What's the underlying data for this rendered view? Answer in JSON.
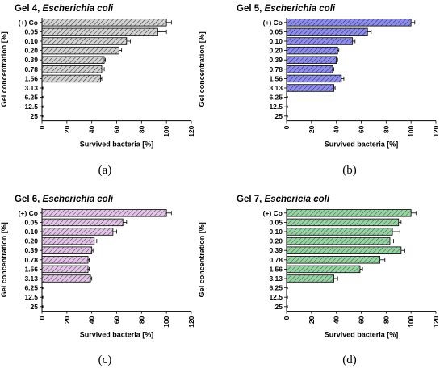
{
  "chart_data": [
    {
      "type": "bar",
      "orientation": "horizontal",
      "title_main": "Gel 4, ",
      "title_species": "Escherichia coli",
      "caption": "(a)",
      "xlabel": "Survived bacteria [%]",
      "ylabel": "Gel concentration [%]",
      "xlim": [
        0,
        120
      ],
      "xticks": [
        "0",
        "20",
        "40",
        "60",
        "80",
        "100",
        "120"
      ],
      "categories": [
        "(+) Co",
        "0.05",
        "0.10",
        "0.20",
        "0.39",
        "0.78",
        "1.56",
        "3.13",
        "6.25",
        "12.5",
        "25"
      ],
      "values": [
        100,
        93,
        68,
        62,
        50,
        48,
        47,
        0,
        0,
        0,
        0
      ],
      "errors": [
        4,
        7,
        3,
        2,
        1,
        2,
        1,
        0,
        0,
        0,
        0
      ],
      "bar_color": "#d4d4d4",
      "hatch_color": "#333333"
    },
    {
      "type": "bar",
      "orientation": "horizontal",
      "title_main": "Gel 5, ",
      "title_species": "Escherichia coli",
      "caption": "(b)",
      "xlabel": "Survived bacteria [%]",
      "ylabel": "Gel concentration [%]",
      "xlim": [
        0,
        120
      ],
      "xticks": [
        "0",
        "20",
        "40",
        "60",
        "80",
        "100",
        "120"
      ],
      "categories": [
        "(+) Co",
        "0.05",
        "0.10",
        "0.20",
        "0.39",
        "0.78",
        "1.56",
        "3.13",
        "6.25",
        "12.5",
        "25"
      ],
      "values": [
        100,
        65,
        53,
        41,
        40,
        37,
        44,
        38,
        0,
        0,
        0
      ],
      "errors": [
        3,
        3,
        2,
        1,
        1,
        1,
        2,
        1,
        0,
        0,
        0
      ],
      "bar_color": "#8f8fe8",
      "hatch_color": "#2a2a80"
    },
    {
      "type": "bar",
      "orientation": "horizontal",
      "title_main": "Gel 6, ",
      "title_species": "Escherichia coli",
      "caption": "(c)",
      "xlabel": "Survived bacteria [%]",
      "ylabel": "Gel concentration [%]",
      "xlim": [
        0,
        120
      ],
      "xticks": [
        "0",
        "20",
        "40",
        "60",
        "80",
        "100",
        "120"
      ],
      "categories": [
        "(+) Co",
        "0.05",
        "0.10",
        "0.20",
        "0.39",
        "0.78",
        "1.56",
        "3.13",
        "6.25",
        "12.5",
        "25"
      ],
      "values": [
        100,
        65,
        57,
        42,
        40,
        37,
        37,
        39,
        0,
        0,
        0
      ],
      "errors": [
        4,
        3,
        3,
        2,
        1,
        1,
        1,
        1,
        0,
        0,
        0
      ],
      "bar_color": "#e2c6e6",
      "hatch_color": "#5e3a64"
    },
    {
      "type": "bar",
      "orientation": "horizontal",
      "title_main": "Gel 7, ",
      "title_species": "Eschericia coli",
      "caption": "(d)",
      "xlabel": "Survived bacteria [%]",
      "ylabel": "Gel concentration [%]",
      "xlim": [
        0,
        120
      ],
      "xticks": [
        "0",
        "20",
        "40",
        "60",
        "80",
        "100",
        "120"
      ],
      "categories": [
        "(+) Co",
        "0.05",
        "0.10",
        "0.20",
        "0.39",
        "0.78",
        "1.56",
        "3.13",
        "6.25",
        "12.5",
        "25"
      ],
      "values": [
        100,
        90,
        85,
        83,
        92,
        75,
        59,
        38,
        0,
        0,
        0
      ],
      "errors": [
        4,
        2,
        6,
        3,
        3,
        4,
        2,
        3,
        0,
        0,
        0
      ],
      "bar_color": "#9ad2a6",
      "hatch_color": "#2f6b3c"
    }
  ]
}
